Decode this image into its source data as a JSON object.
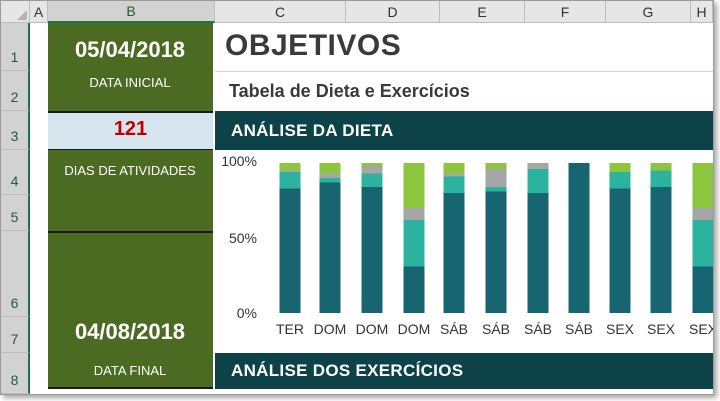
{
  "spreadsheet": {
    "columns": [
      "A",
      "B",
      "C",
      "D",
      "E",
      "F",
      "G",
      "H"
    ],
    "rows": [
      "1",
      "2",
      "3",
      "4",
      "5",
      "6",
      "7",
      "8"
    ]
  },
  "sidebar": {
    "start_date": "05/04/2018",
    "start_label": "DATA INICIAL",
    "days_count": "121",
    "days_label": "DIAS DE ATIVIDADES",
    "end_date": "04/08/2018",
    "end_label": "DATA FINAL"
  },
  "header": {
    "title": "OBJETIVOS",
    "subtitle": "Tabela de Dieta e Exercícios"
  },
  "diet_section": {
    "label": "ANÁLISE DA DIETA"
  },
  "exercise_section": {
    "label": "ANÁLISE DOS EXERCÍCIOS"
  },
  "colors": {
    "sidebar_green": "#4c6b22",
    "band_dark": "#0d4249",
    "days_red": "#c00000",
    "days_bg": "#d6e4ee",
    "series": [
      "#166570",
      "#2bb3a0",
      "#a6a6a6",
      "#8cc63f"
    ]
  },
  "chart_data": {
    "type": "bar",
    "stacked": true,
    "percent": true,
    "categories": [
      "TER",
      "DOM",
      "DOM",
      "DOM",
      "SÁB",
      "SÁB",
      "SÁB",
      "SÁB",
      "SEX",
      "SEX",
      "SEX"
    ],
    "series": [
      {
        "values": [
          83,
          87,
          84,
          31,
          80,
          81,
          80,
          100,
          83,
          84,
          31
        ]
      },
      {
        "values": [
          11,
          3,
          9,
          31,
          11,
          3,
          16,
          0,
          11,
          11,
          31
        ]
      },
      {
        "values": [
          1,
          3,
          5,
          8,
          2,
          12,
          4,
          0,
          0,
          0,
          8
        ]
      },
      {
        "values": [
          5,
          7,
          2,
          30,
          7,
          4,
          0,
          0,
          6,
          5,
          30
        ]
      }
    ],
    "yticks": [
      "100%",
      "50%",
      "0%"
    ],
    "ylim": [
      0,
      100
    ],
    "grid": false,
    "legend": "none"
  }
}
